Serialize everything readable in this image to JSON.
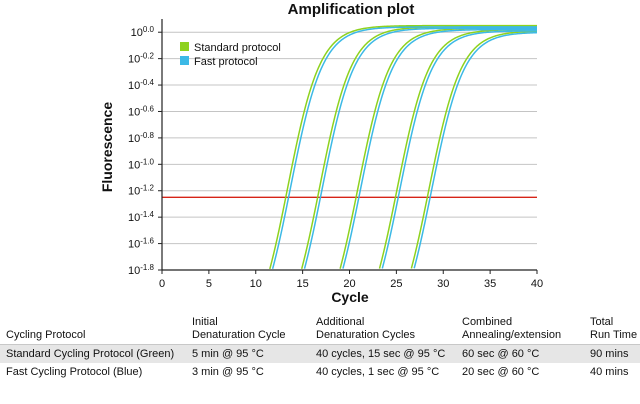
{
  "chart_data": {
    "type": "line",
    "title": "Amplification plot",
    "xlabel": "Cycle",
    "ylabel": "Fluorescence",
    "xlim": [
      0,
      40
    ],
    "ylim": [
      -1.8,
      0.1
    ],
    "y_scale": "log10",
    "x_ticks": [
      "0",
      "5",
      "10",
      "15",
      "20",
      "25",
      "30",
      "35",
      "40"
    ],
    "y_tick_base": "10",
    "y_tick_exponents": [
      "0.0",
      "-0.2",
      "-0.4",
      "-0.6",
      "-0.8",
      "-1.0",
      "-1.2",
      "-1.4",
      "-1.6",
      "-1.8"
    ],
    "grid": "horizontal",
    "legend_position": "top-left",
    "threshold": {
      "y": -1.25,
      "color": "#d62418"
    },
    "series": [
      {
        "name": "Standard protocol",
        "color": "#8ed21e",
        "ct_values": [
          13.2,
          16.6,
          20.7,
          24.9,
          28.3
        ],
        "plateau": [
          0.05,
          0.04,
          0.03,
          0.02,
          0.01
        ]
      },
      {
        "name": "Fast protocol",
        "color": "#3cb9e6",
        "ct_values": [
          13.5,
          16.9,
          21.0,
          25.2,
          28.6
        ],
        "plateau": [
          0.04,
          0.03,
          0.02,
          0.01,
          0.0
        ]
      }
    ]
  },
  "table": {
    "headers": [
      [
        "Cycling Protocol"
      ],
      [
        "Initial",
        "Denaturation Cycle"
      ],
      [
        "Additional",
        "Denaturation Cycles"
      ],
      [
        "Combined",
        "Annealing/extension"
      ],
      [
        "Total",
        "Run Time"
      ]
    ],
    "rows": [
      [
        "Standard Cycling Protocol (Green)",
        "5 min  @ 95 °C",
        "40 cycles, 15 sec @ 95 °C",
        "60 sec @ 60 °C",
        "90 mins"
      ],
      [
        "Fast Cycling Protocol (Blue)",
        "3 min @ 95 °C",
        "40 cycles, 1 sec @ 95 °C",
        "20 sec @ 60 °C",
        "40 mins"
      ]
    ]
  }
}
